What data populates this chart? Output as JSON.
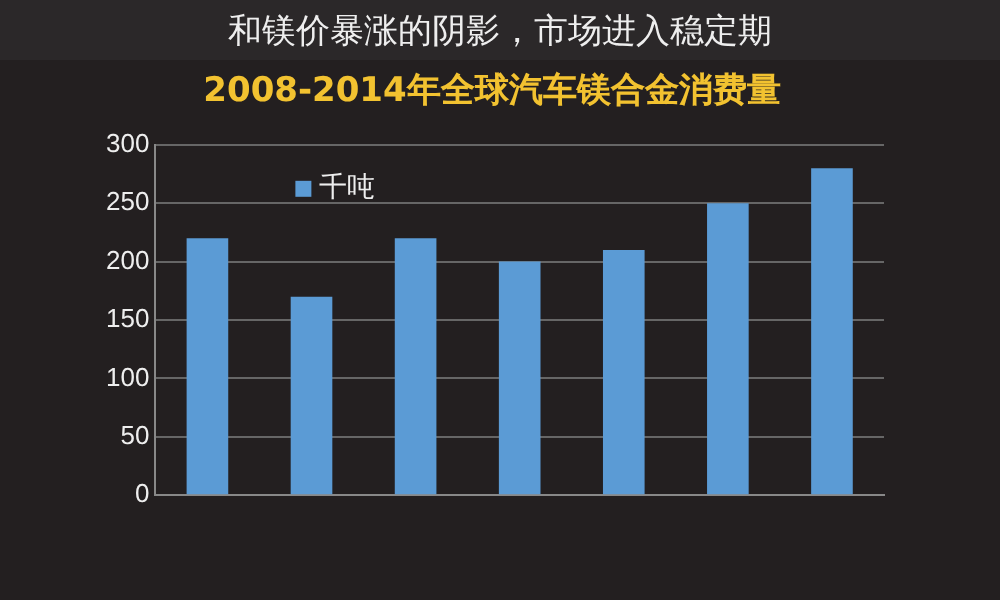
{
  "chart_data": {
    "type": "bar",
    "title": "2008-2014年全球汽车镁合金消费量",
    "annotations": [
      "和镁价暴涨的阴影，市场进入稳定期"
    ],
    "categories": [
      null,
      null,
      null,
      null,
      null,
      null,
      null
    ],
    "series": [
      {
        "name": "千吨",
        "color": "#5b9bd5",
        "values": [
          220,
          170,
          220,
          200,
          210,
          250,
          280
        ]
      }
    ],
    "ylim": [
      0,
      300
    ],
    "yticks": [
      0,
      50,
      100,
      150,
      200,
      250,
      300
    ],
    "grid": "y",
    "legend": "top left"
  }
}
